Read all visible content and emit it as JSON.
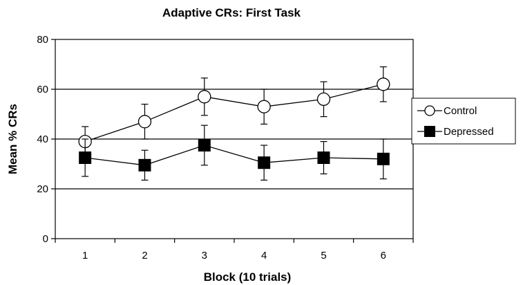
{
  "chart_data": {
    "type": "line",
    "title": "Adaptive CRs: First Task",
    "xlabel": "Block (10 trials)",
    "ylabel": "Mean % CRs",
    "categories": [
      "1",
      "2",
      "3",
      "4",
      "5",
      "6"
    ],
    "y_ticks": [
      "0",
      "20",
      "40",
      "60",
      "80"
    ],
    "ylim": [
      0,
      80
    ],
    "grid": "horizontal at 20, 40, 60",
    "legend_position": "right",
    "series": [
      {
        "name": "Control",
        "marker": "open-circle",
        "values": [
          39,
          47,
          57,
          53,
          56,
          62
        ],
        "error": [
          6,
          7,
          7.5,
          7,
          7,
          7
        ]
      },
      {
        "name": "Depressed",
        "marker": "filled-square",
        "values": [
          32.5,
          29.5,
          37.5,
          30.5,
          32.5,
          32
        ],
        "error": [
          7.5,
          6,
          8,
          7,
          6.5,
          8
        ]
      }
    ]
  }
}
